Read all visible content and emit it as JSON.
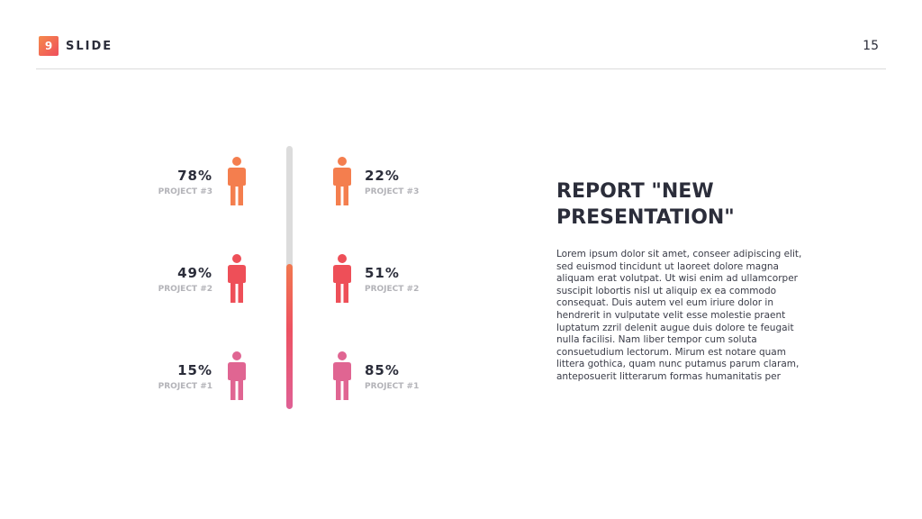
{
  "header": {
    "badge_number": "9",
    "slide_label": "SLIDE",
    "page_number": "15"
  },
  "left_stats": [
    {
      "percent": "78%",
      "project": "PROJECT #3",
      "color": "#f47e4e"
    },
    {
      "percent": "49%",
      "project": "PROJECT #2",
      "color": "#ee4f58"
    },
    {
      "percent": "15%",
      "project": "PROJECT #1",
      "color": "#e06592"
    }
  ],
  "right_stats": [
    {
      "percent": "22%",
      "project": "PROJECT #3",
      "color": "#f47e4e"
    },
    {
      "percent": "51%",
      "project": "PROJECT #2",
      "color": "#ee4f58"
    },
    {
      "percent": "85%",
      "project": "PROJECT #1",
      "color": "#e06592"
    }
  ],
  "progress": {
    "fill_fraction": 0.55,
    "track_color": "#dcdcdc"
  },
  "report": {
    "title": "REPORT \"NEW PRESENTATION\"",
    "body": "Lorem ipsum dolor sit amet, conseer adipiscing elit, sed euismod tincidunt ut laoreet dolore magna aliquam erat volutpat. Ut wisi enim ad ullamcorper suscipit lobortis nisl ut aliquip ex ea commodo consequat. Duis autem vel eum iriure dolor in hendrerit in vulputate velit esse molestie praent luptatum zzril delenit augue duis dolore te feugait nulla facilisi. Nam liber tempor cum soluta consuetudium lectorum. Mirum est notare quam littera gothica, quam nunc putamus parum claram, anteposuerit litterarum formas humanitatis per"
  }
}
